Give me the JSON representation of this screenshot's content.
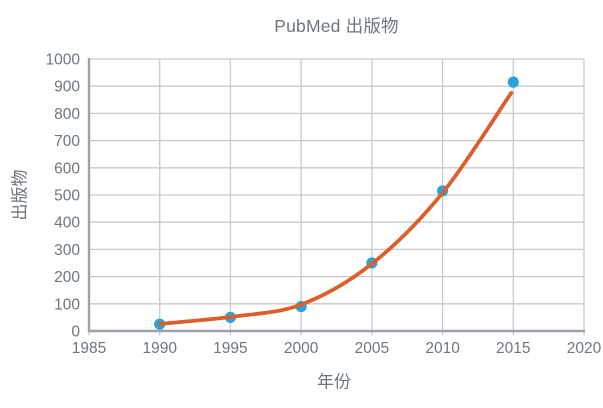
{
  "title": "PubMed 出版物",
  "colors": {
    "background": "#FFFFFF",
    "point": "#29A3DC",
    "trend": "#DC5F2B",
    "grid": "#C7CACC",
    "axis": "#9CA2A7",
    "text": "#6E767D"
  },
  "chart_data": {
    "type": "scatter",
    "title": "PubMed 出版物",
    "xlabel": "年份",
    "ylabel": "出版物",
    "xlim": [
      1985,
      2020
    ],
    "ylim": [
      0,
      1000
    ],
    "x_ticks": [
      1985,
      1990,
      1995,
      2000,
      2005,
      2010,
      2015,
      2020
    ],
    "y_ticks": [
      0,
      100,
      200,
      300,
      400,
      500,
      600,
      700,
      800,
      900,
      1000
    ],
    "grid": true,
    "legend": false,
    "series": [
      {
        "name": "scatter-points",
        "type": "scatter",
        "color": "#29A3DC",
        "points": [
          [
            1990,
            25
          ],
          [
            1995,
            50
          ],
          [
            2000,
            90
          ],
          [
            2005,
            250
          ],
          [
            2010,
            515
          ],
          [
            2015,
            915
          ]
        ]
      },
      {
        "name": "trendline",
        "type": "line",
        "color": "#DC5F2B",
        "points": [
          [
            1990,
            26
          ],
          [
            1995,
            52
          ],
          [
            2000,
            97
          ],
          [
            2005,
            247
          ],
          [
            2010,
            508
          ],
          [
            2014.85,
            875
          ]
        ]
      }
    ]
  }
}
